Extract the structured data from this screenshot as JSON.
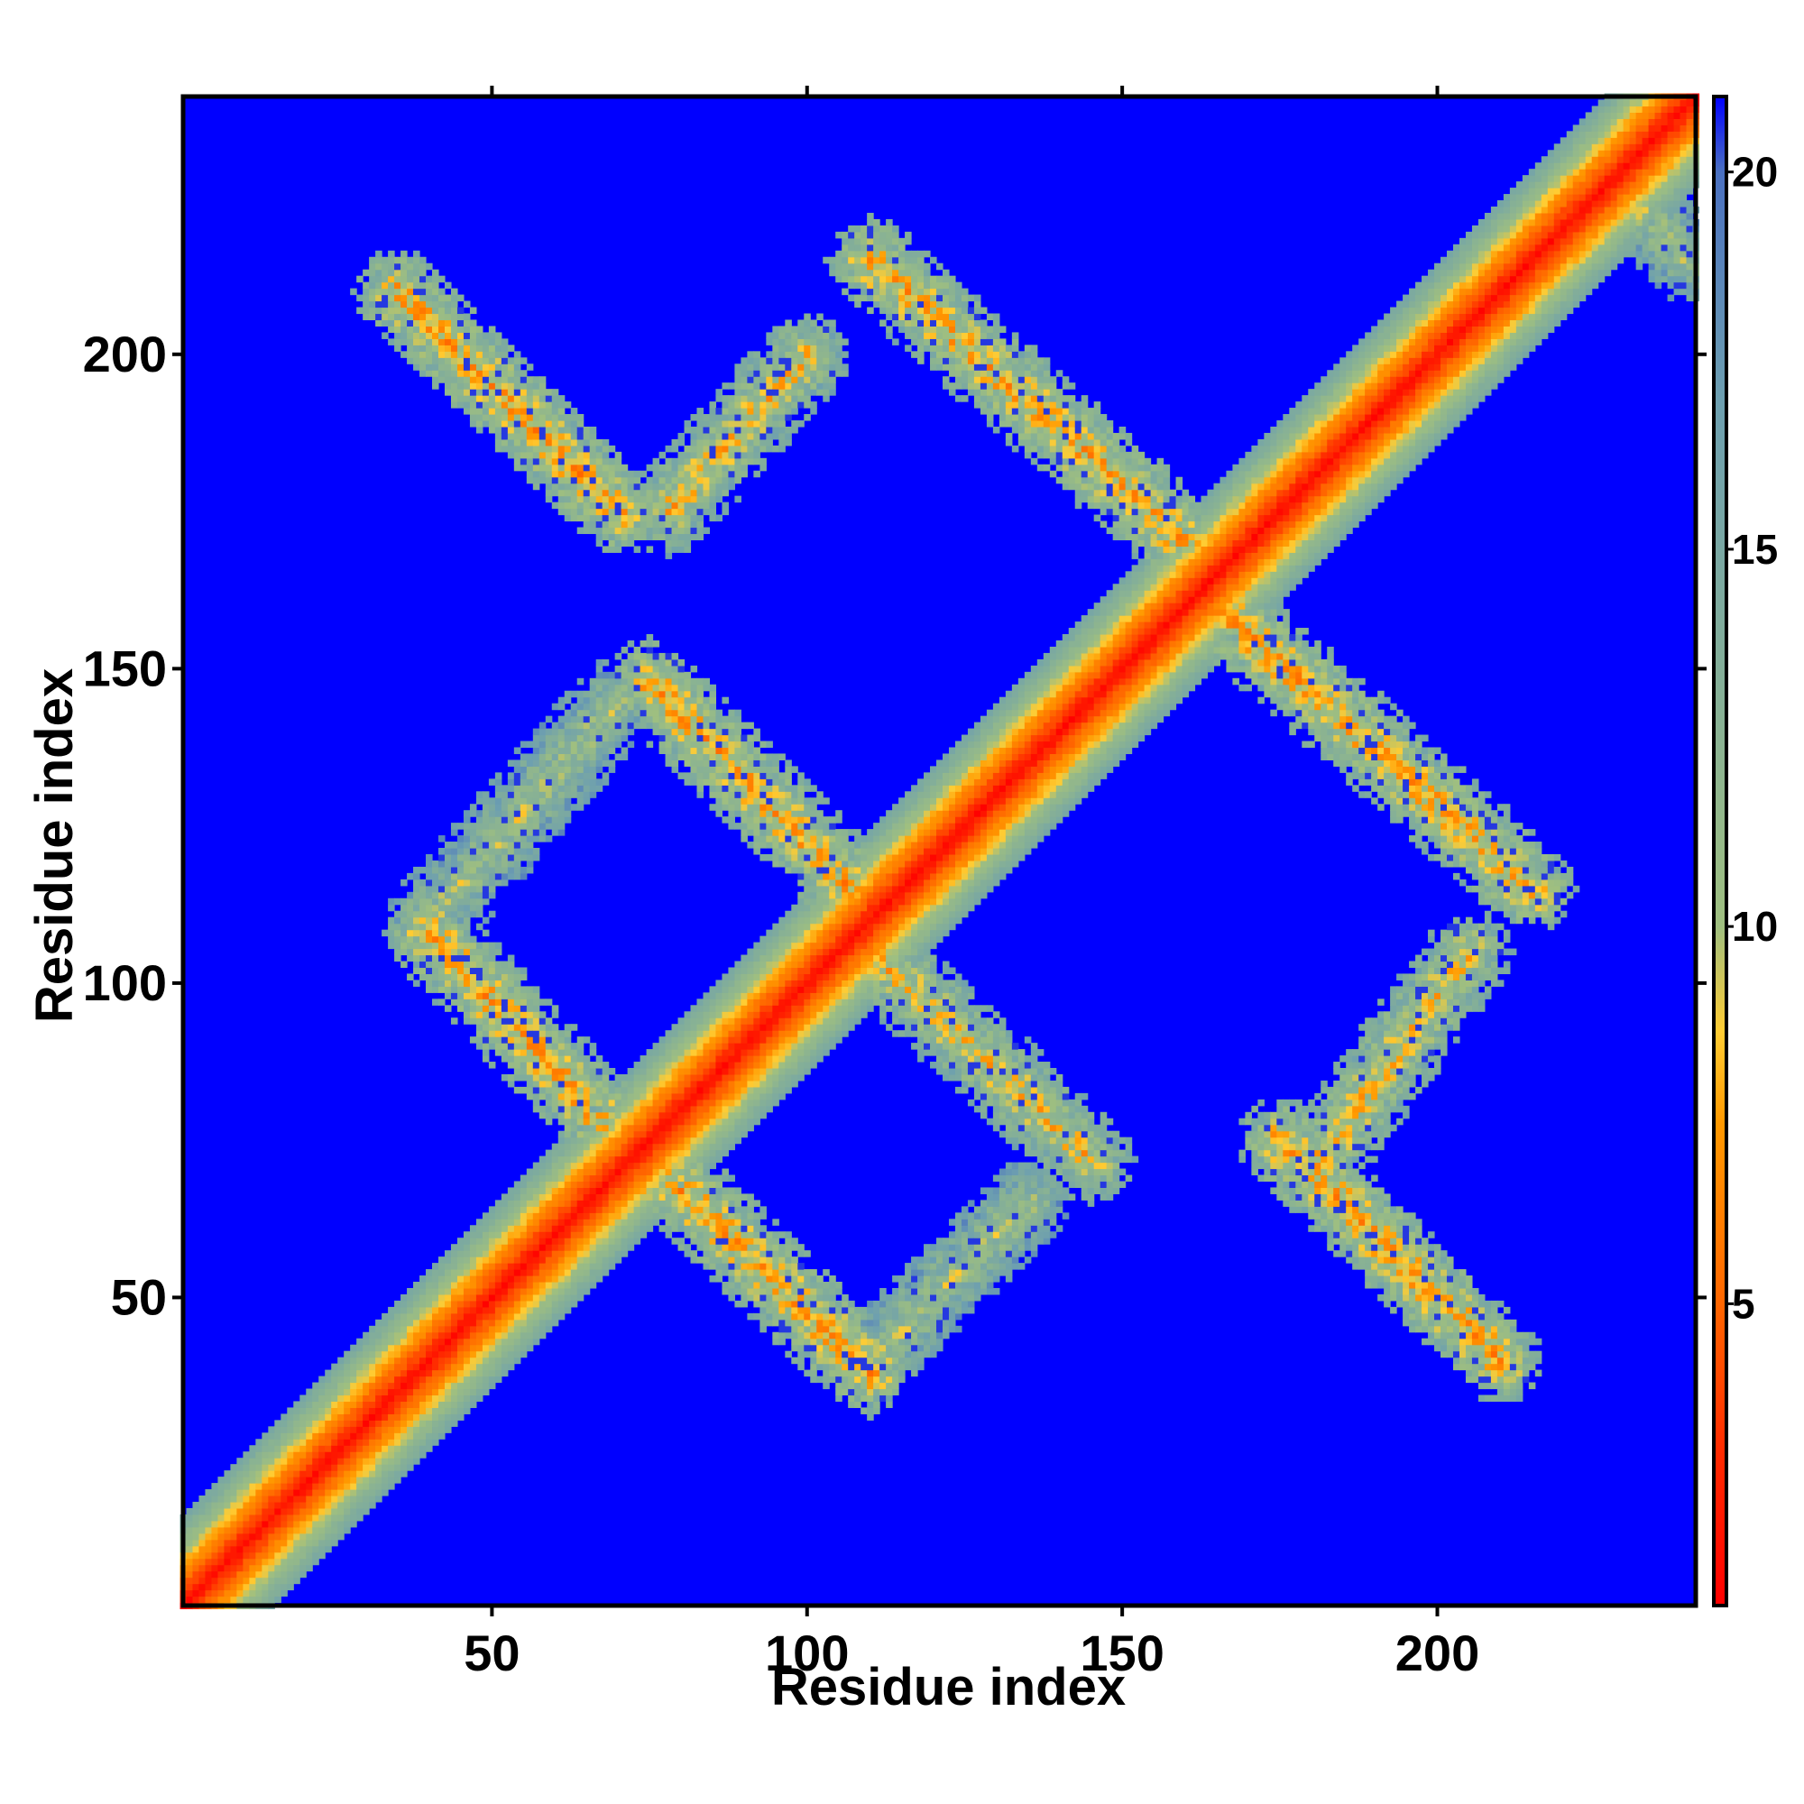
{
  "chart_data": {
    "type": "heatmap",
    "title": "",
    "xlabel": "Residue index",
    "ylabel": "Residue index",
    "xlim": [
      1,
      241
    ],
    "ylim": [
      1,
      241
    ],
    "x_ticks": [
      50,
      100,
      150,
      200
    ],
    "y_ticks": [
      50,
      100,
      150,
      200
    ],
    "colorbar": {
      "range": [
        1,
        21
      ],
      "ticks": [
        5,
        10,
        15,
        20
      ],
      "colors": [
        "#ff0000",
        "#ff9900",
        "#8fbf8f",
        "#4a8fb0",
        "#0000ff"
      ]
    },
    "background_value": 21,
    "bands": [
      {
        "name": "diagonal",
        "x": [
          1,
          241
        ],
        "y": [
          1,
          241
        ],
        "min_value": 1
      },
      {
        "name": "strand-pair",
        "x": [
          35,
          70
        ],
        "y": [
          210,
          175
        ],
        "min_value": 5
      },
      {
        "name": "strand-pair",
        "x": [
          78,
          100
        ],
        "y": [
          175,
          200
        ],
        "min_value": 6
      },
      {
        "name": "strand-pair",
        "x": [
          110,
          160
        ],
        "y": [
          215,
          170
        ],
        "min_value": 5
      },
      {
        "name": "strand-pair",
        "x": [
          165,
          215
        ],
        "y": [
          160,
          115
        ],
        "min_value": 5
      },
      {
        "name": "strand-pair",
        "x": [
          175,
          210
        ],
        "y": [
          75,
          40
        ],
        "min_value": 5
      },
      {
        "name": "strand-pair",
        "x": [
          180,
          205
        ],
        "y": [
          70,
          105
        ],
        "min_value": 6
      },
      {
        "name": "strand-pair",
        "x": [
          40,
          75
        ],
        "y": [
          108,
          70
        ],
        "min_value": 5
      },
      {
        "name": "strand-pair",
        "x": [
          75,
          110
        ],
        "y": [
          148,
          112
        ],
        "min_value": 5
      },
      {
        "name": "strand-pair",
        "x": [
          110,
          145
        ],
        "y": [
          105,
          72
        ],
        "min_value": 6
      },
      {
        "name": "strand-pair",
        "x": [
          75,
          110
        ],
        "y": [
          72,
          38
        ],
        "min_value": 5
      },
      {
        "name": "strand-pair",
        "x": [
          40,
          70
        ],
        "y": [
          110,
          145
        ],
        "min_value": 8
      },
      {
        "name": "strand-pair",
        "x": [
          110,
          135
        ],
        "y": [
          40,
          65
        ],
        "min_value": 8
      },
      {
        "name": "strand-pair",
        "x": [
          225,
          240
        ],
        "y": [
          230,
          215
        ],
        "min_value": 8
      }
    ]
  }
}
